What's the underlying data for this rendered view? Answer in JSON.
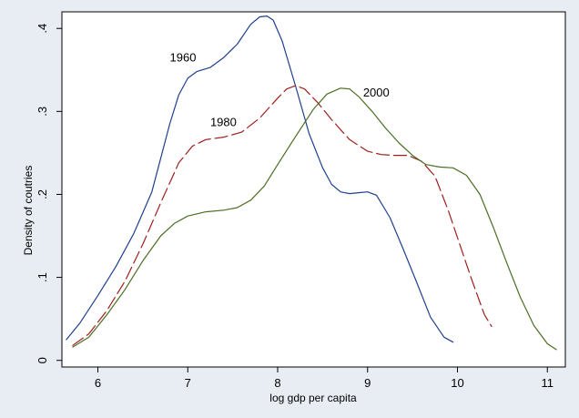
{
  "chart_data": {
    "type": "line",
    "title": "",
    "xlabel": "log gdp per capita",
    "ylabel": "Density of coutries",
    "xlim": [
      5.6,
      11.2
    ],
    "ylim": [
      -0.008,
      0.42
    ],
    "xticks": [
      6,
      7,
      8,
      9,
      10,
      11
    ],
    "xtick_labels": [
      "6",
      "7",
      "8",
      "9",
      "10",
      "11"
    ],
    "yticks": [
      0,
      0.1,
      0.2,
      0.3,
      0.4
    ],
    "ytick_labels": [
      "0",
      ".1",
      ".2",
      ".3",
      ".4"
    ],
    "grid": false,
    "legend": "none",
    "series": [
      {
        "name": "1960",
        "color": "#1f3f8f",
        "dash": "solid",
        "label_at": [
          6.8,
          0.36
        ],
        "points": [
          [
            5.65,
            0.025
          ],
          [
            5.8,
            0.045
          ],
          [
            6.0,
            0.078
          ],
          [
            6.2,
            0.113
          ],
          [
            6.4,
            0.153
          ],
          [
            6.6,
            0.203
          ],
          [
            6.8,
            0.285
          ],
          [
            6.9,
            0.32
          ],
          [
            7.0,
            0.34
          ],
          [
            7.1,
            0.348
          ],
          [
            7.25,
            0.353
          ],
          [
            7.4,
            0.365
          ],
          [
            7.55,
            0.381
          ],
          [
            7.7,
            0.405
          ],
          [
            7.8,
            0.414
          ],
          [
            7.88,
            0.415
          ],
          [
            7.95,
            0.41
          ],
          [
            8.05,
            0.385
          ],
          [
            8.2,
            0.33
          ],
          [
            8.35,
            0.273
          ],
          [
            8.5,
            0.232
          ],
          [
            8.6,
            0.212
          ],
          [
            8.7,
            0.203
          ],
          [
            8.8,
            0.201
          ],
          [
            8.9,
            0.202
          ],
          [
            9.0,
            0.203
          ],
          [
            9.1,
            0.199
          ],
          [
            9.25,
            0.172
          ],
          [
            9.4,
            0.133
          ],
          [
            9.55,
            0.093
          ],
          [
            9.7,
            0.052
          ],
          [
            9.85,
            0.028
          ],
          [
            9.95,
            0.022
          ]
        ]
      },
      {
        "name": "1980",
        "color": "#a01e1e",
        "dash": "long-dash",
        "label_at": [
          7.25,
          0.282
        ],
        "points": [
          [
            5.72,
            0.018
          ],
          [
            5.9,
            0.032
          ],
          [
            6.1,
            0.06
          ],
          [
            6.3,
            0.095
          ],
          [
            6.5,
            0.14
          ],
          [
            6.7,
            0.19
          ],
          [
            6.9,
            0.238
          ],
          [
            7.05,
            0.258
          ],
          [
            7.2,
            0.266
          ],
          [
            7.4,
            0.269
          ],
          [
            7.6,
            0.275
          ],
          [
            7.8,
            0.292
          ],
          [
            8.0,
            0.316
          ],
          [
            8.1,
            0.327
          ],
          [
            8.2,
            0.331
          ],
          [
            8.3,
            0.327
          ],
          [
            8.45,
            0.31
          ],
          [
            8.6,
            0.29
          ],
          [
            8.8,
            0.266
          ],
          [
            9.0,
            0.252
          ],
          [
            9.15,
            0.248
          ],
          [
            9.3,
            0.247
          ],
          [
            9.45,
            0.247
          ],
          [
            9.6,
            0.24
          ],
          [
            9.75,
            0.222
          ],
          [
            9.9,
            0.18
          ],
          [
            10.0,
            0.148
          ],
          [
            10.15,
            0.1
          ],
          [
            10.3,
            0.055
          ],
          [
            10.38,
            0.041
          ]
        ]
      },
      {
        "name": "2000",
        "color": "#4b6e24",
        "dash": "solid",
        "label_at": [
          8.95,
          0.318
        ],
        "points": [
          [
            5.72,
            0.016
          ],
          [
            5.9,
            0.028
          ],
          [
            6.1,
            0.055
          ],
          [
            6.3,
            0.085
          ],
          [
            6.5,
            0.12
          ],
          [
            6.7,
            0.15
          ],
          [
            6.85,
            0.165
          ],
          [
            7.0,
            0.174
          ],
          [
            7.2,
            0.179
          ],
          [
            7.4,
            0.181
          ],
          [
            7.55,
            0.184
          ],
          [
            7.7,
            0.193
          ],
          [
            7.85,
            0.21
          ],
          [
            8.0,
            0.236
          ],
          [
            8.2,
            0.27
          ],
          [
            8.4,
            0.303
          ],
          [
            8.55,
            0.321
          ],
          [
            8.7,
            0.328
          ],
          [
            8.8,
            0.327
          ],
          [
            8.9,
            0.318
          ],
          [
            9.05,
            0.3
          ],
          [
            9.2,
            0.28
          ],
          [
            9.35,
            0.262
          ],
          [
            9.5,
            0.247
          ],
          [
            9.65,
            0.236
          ],
          [
            9.8,
            0.233
          ],
          [
            9.95,
            0.232
          ],
          [
            10.1,
            0.223
          ],
          [
            10.25,
            0.2
          ],
          [
            10.4,
            0.16
          ],
          [
            10.55,
            0.117
          ],
          [
            10.7,
            0.076
          ],
          [
            10.85,
            0.042
          ],
          [
            11.0,
            0.02
          ],
          [
            11.1,
            0.013
          ]
        ]
      }
    ]
  }
}
